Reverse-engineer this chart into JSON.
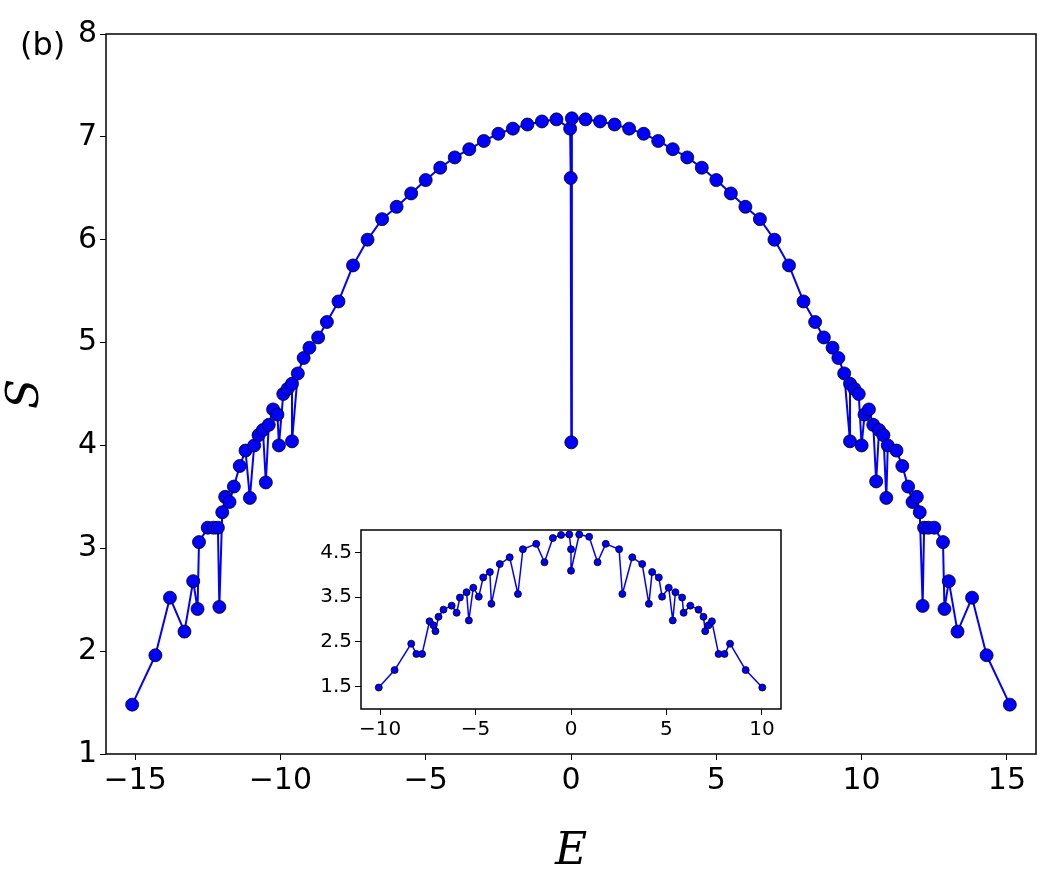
{
  "chart_data": [
    {
      "type": "line",
      "xlabel": "E",
      "ylabel": "S",
      "annotations": [
        "(b)"
      ],
      "color": "#0000ff",
      "marker": "circle",
      "line_style": "solid",
      "grid": false,
      "xlim": [
        -16,
        16
      ],
      "ylim": [
        1,
        8
      ],
      "xticks": [
        {
          "value": -15,
          "label": "−15"
        },
        {
          "value": -10,
          "label": "−10"
        },
        {
          "value": -5,
          "label": "−5"
        },
        0,
        5,
        10,
        15
      ],
      "yticks": [
        1,
        2,
        3,
        4,
        5,
        6,
        7,
        8
      ],
      "x": [
        -15.1,
        -14.3,
        -13.8,
        -13.3,
        -13.0,
        -12.85,
        -12.8,
        -12.5,
        -12.3,
        -12.15,
        -12.1,
        -12.0,
        -11.9,
        -11.75,
        -11.6,
        -11.4,
        -11.2,
        -11.05,
        -10.9,
        -10.75,
        -10.6,
        -10.5,
        -10.4,
        -10.25,
        -10.1,
        -10.05,
        -9.9,
        -9.75,
        -9.6,
        -9.6,
        -9.4,
        -9.2,
        -9.0,
        -8.7,
        -8.4,
        -8.0,
        -7.5,
        -7.0,
        -6.5,
        -6.0,
        -5.5,
        -5.0,
        -4.5,
        -4.0,
        -3.5,
        -3.0,
        -2.5,
        -2.0,
        -1.5,
        -1.0,
        -0.5,
        -0.03,
        -0.01,
        0.01,
        0.03,
        0.5,
        1.0,
        1.5,
        2.0,
        2.5,
        3.0,
        3.5,
        4.0,
        4.5,
        5.0,
        5.5,
        6.0,
        6.5,
        7.0,
        7.5,
        8.0,
        8.4,
        8.7,
        9.0,
        9.2,
        9.4,
        9.6,
        9.6,
        9.75,
        9.9,
        10.0,
        10.1,
        10.25,
        10.4,
        10.5,
        10.6,
        10.75,
        10.85,
        10.9,
        11.2,
        11.4,
        11.6,
        11.75,
        11.9,
        12.0,
        12.1,
        12.15,
        12.3,
        12.5,
        12.8,
        12.85,
        13.0,
        13.3,
        13.8,
        14.3,
        15.1
      ],
      "values": [
        1.48,
        1.96,
        2.52,
        2.19,
        2.68,
        2.41,
        3.06,
        3.2,
        3.2,
        3.2,
        2.43,
        3.35,
        3.5,
        3.45,
        3.6,
        3.8,
        3.95,
        3.49,
        4.0,
        4.1,
        4.15,
        3.64,
        4.2,
        4.35,
        4.3,
        4.0,
        4.5,
        4.55,
        4.6,
        4.04,
        4.7,
        4.85,
        4.95,
        5.05,
        5.2,
        5.4,
        5.75,
        6.0,
        6.2,
        6.32,
        6.45,
        6.58,
        6.7,
        6.8,
        6.88,
        6.96,
        7.03,
        7.08,
        7.12,
        7.15,
        7.17,
        7.08,
        6.6,
        4.03,
        7.18,
        7.17,
        7.15,
        7.12,
        7.08,
        7.03,
        6.96,
        6.88,
        6.8,
        6.7,
        6.58,
        6.45,
        6.32,
        6.2,
        6.0,
        5.75,
        5.4,
        5.2,
        5.05,
        4.95,
        4.85,
        4.7,
        4.04,
        4.6,
        4.55,
        4.5,
        4.0,
        4.3,
        4.35,
        4.2,
        3.65,
        4.15,
        4.1,
        3.49,
        4.0,
        3.95,
        3.8,
        3.6,
        3.45,
        3.5,
        3.35,
        2.44,
        3.2,
        3.2,
        3.2,
        3.06,
        2.41,
        2.68,
        2.19,
        2.52,
        1.96,
        1.48
      ]
    },
    {
      "type": "line",
      "color": "#0000ff",
      "marker": "circle",
      "line_style": "solid",
      "grid": false,
      "xlim": [
        -11,
        11
      ],
      "ylim": [
        1,
        5
      ],
      "xticks": [
        {
          "value": -10,
          "label": "−10"
        },
        {
          "value": -5,
          "label": "−5"
        },
        0,
        5,
        10
      ],
      "yticks": [
        1.5,
        2.5,
        3.5,
        4.5
      ],
      "x": [
        -10.07,
        -9.24,
        -8.37,
        -8.1,
        -7.8,
        -7.41,
        -7.2,
        -7.1,
        -6.94,
        -6.68,
        -6.25,
        -5.99,
        -5.82,
        -5.47,
        -5.35,
        -5.12,
        -4.83,
        -4.6,
        -4.25,
        -4.17,
        -3.73,
        -3.21,
        -2.78,
        -2.52,
        -1.82,
        -1.39,
        -0.95,
        -0.52,
        -0.09,
        0,
        0,
        0.43,
        0.95,
        1.39,
        1.82,
        2.52,
        2.69,
        3.21,
        3.73,
        4.08,
        4.25,
        4.6,
        4.77,
        5.12,
        5.33,
        5.47,
        5.82,
        5.9,
        6.25,
        6.68,
        6.94,
        7.03,
        7.2,
        7.38,
        7.73,
        8.04,
        8.33,
        9.15,
        10.02
      ],
      "values": [
        1.48,
        1.87,
        2.46,
        2.23,
        2.23,
        2.96,
        2.87,
        2.74,
        3.06,
        3.22,
        3.31,
        3.15,
        3.49,
        3.61,
        2.98,
        3.71,
        3.51,
        3.94,
        4.06,
        3.35,
        4.24,
        4.39,
        3.57,
        4.57,
        4.69,
        4.28,
        4.82,
        4.89,
        4.9,
        4.57,
        4.09,
        4.9,
        4.85,
        4.28,
        4.69,
        4.57,
        3.57,
        4.39,
        4.24,
        3.35,
        4.06,
        3.94,
        3.51,
        3.71,
        2.98,
        3.61,
        3.49,
        3.15,
        3.31,
        3.22,
        3.06,
        2.74,
        2.87,
        2.96,
        2.23,
        2.23,
        2.46,
        1.87,
        1.48
      ]
    }
  ]
}
